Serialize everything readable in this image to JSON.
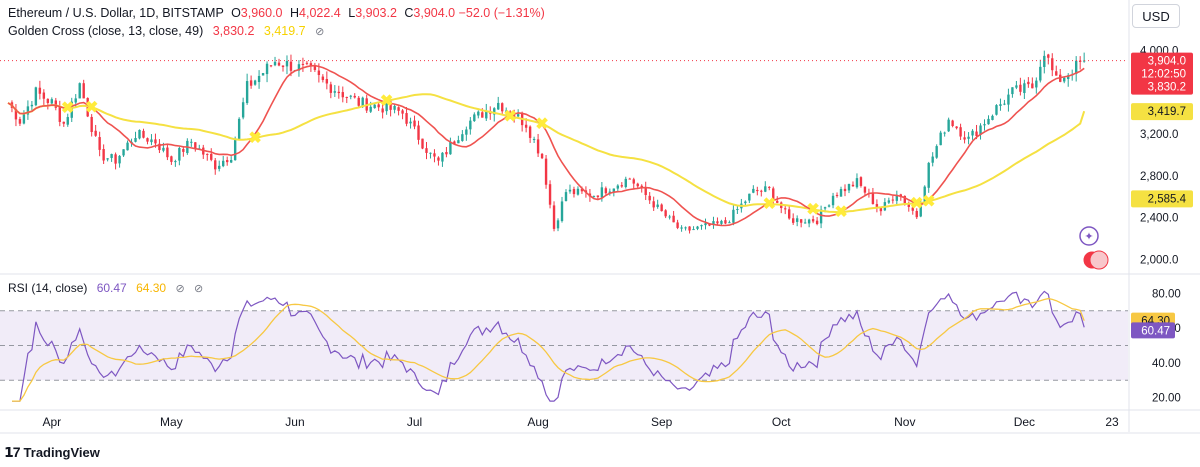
{
  "header": {
    "symbol": "Ethereum / U.S. Dollar, 1D, BITSTAMP",
    "open_label": "O",
    "open": "3,960.0",
    "high_label": "H",
    "high": "4,022.4",
    "low_label": "L",
    "low": "3,903.2",
    "close_label": "C",
    "close": "3,904.0",
    "change": "−52.0 (−1.31%)"
  },
  "indicator": {
    "name": "Golden Cross (close, 13, close, 49)",
    "value_fast": "3,830.2",
    "value_slow": "3,419.7",
    "settings_icon": "eye-off-icon"
  },
  "rsi": {
    "name": "RSI (14, close)",
    "value": "60.47",
    "ma_value": "64.30",
    "icons": [
      "eye-off-icon",
      "eye-off-icon"
    ]
  },
  "currency_button": "USD",
  "brand": "TradingView",
  "price_labels": {
    "last": "3,904.0",
    "countdown": "12:02:50",
    "fast_ma": "3,830.2",
    "slow_ma": "3,419.7",
    "level": "2,585.4"
  },
  "rsi_labels": {
    "ma": "64.30",
    "rsi": "60.47"
  },
  "colors": {
    "up": "#26a69a",
    "down": "#f23645",
    "fast_ma": "#ef5350",
    "slow_ma": "#f5e142",
    "rsi_line": "#7e57c2",
    "rsi_ma": "#f7c843",
    "rsi_band": "#ede7f6",
    "cross_marker": "#ffeb3b"
  },
  "chart_data": [
    {
      "type": "candlestick",
      "title": "Ethereum / U.S. Dollar, 1D, BITSTAMP",
      "y_axis_ticks": [
        2000,
        2400,
        2800,
        3200,
        3600,
        4000
      ],
      "y_tick_labels": [
        "2,000.0",
        "2,400.0",
        "2,800.0",
        "3,200.0",
        "",
        "4,000.0"
      ],
      "ylim": [
        1900,
        4120
      ],
      "x_tick_labels": [
        "Apr",
        "May",
        "Jun",
        "Jul",
        "Aug",
        "Sep",
        "Oct",
        "Nov",
        "Dec",
        "23"
      ],
      "anchors": [
        [
          "2024-03-21",
          3500
        ],
        [
          "2024-03-24",
          3330
        ],
        [
          "2024-03-28",
          3600
        ],
        [
          "2024-04-01",
          3500
        ],
        [
          "2024-04-04",
          3300
        ],
        [
          "2024-04-08",
          3680
        ],
        [
          "2024-04-13",
          3000
        ],
        [
          "2024-04-17",
          2950
        ],
        [
          "2024-04-22",
          3200
        ],
        [
          "2024-04-27",
          3130
        ],
        [
          "2024-05-01",
          2950
        ],
        [
          "2024-05-06",
          3130
        ],
        [
          "2024-05-12",
          2900
        ],
        [
          "2024-05-16",
          3000
        ],
        [
          "2024-05-20",
          3650
        ],
        [
          "2024-05-27",
          3900
        ],
        [
          "2024-06-05",
          3800
        ],
        [
          "2024-06-08",
          3700
        ],
        [
          "2024-06-17",
          3500
        ],
        [
          "2024-06-24",
          3450
        ],
        [
          "2024-06-28",
          3400
        ],
        [
          "2024-07-05",
          3000
        ],
        [
          "2024-07-07",
          2930
        ],
        [
          "2024-07-14",
          3300
        ],
        [
          "2024-07-22",
          3500
        ],
        [
          "2024-07-29",
          3300
        ],
        [
          "2024-08-02",
          2980
        ],
        [
          "2024-08-05",
          2300
        ],
        [
          "2024-08-08",
          2650
        ],
        [
          "2024-08-15",
          2620
        ],
        [
          "2024-08-24",
          2780
        ],
        [
          "2024-09-01",
          2450
        ],
        [
          "2024-09-06",
          2270
        ],
        [
          "2024-09-17",
          2350
        ],
        [
          "2024-09-24",
          2650
        ],
        [
          "2024-09-28",
          2670
        ],
        [
          "2024-10-03",
          2380
        ],
        [
          "2024-10-10",
          2380
        ],
        [
          "2024-10-14",
          2620
        ],
        [
          "2024-10-20",
          2740
        ],
        [
          "2024-10-26",
          2470
        ],
        [
          "2024-10-30",
          2650
        ],
        [
          "2024-11-04",
          2420
        ],
        [
          "2024-11-07",
          2900
        ],
        [
          "2024-11-12",
          3350
        ],
        [
          "2024-11-17",
          3150
        ],
        [
          "2024-11-24",
          3450
        ],
        [
          "2024-11-28",
          3600
        ],
        [
          "2024-12-03",
          3650
        ],
        [
          "2024-12-06",
          4000
        ],
        [
          "2024-12-09",
          3700
        ],
        [
          "2024-12-16",
          3904
        ]
      ],
      "last_close": 3904.0,
      "fast_ma_last": 3830.2,
      "slow_ma_last": 3419.7,
      "level_line": 2585.4
    },
    {
      "type": "line",
      "title": "RSI (14, close)",
      "y_axis_ticks": [
        20,
        40,
        60,
        80
      ],
      "bands": [
        30,
        50,
        70
      ],
      "ylim": [
        14,
        86
      ],
      "series": [
        {
          "name": "RSI",
          "last": 60.47
        },
        {
          "name": "RSI MA",
          "last": 64.3
        }
      ]
    }
  ]
}
